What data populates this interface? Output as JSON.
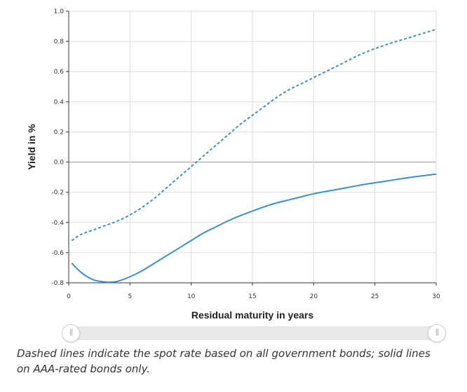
{
  "chart_data": {
    "type": "line",
    "xlabel": "Residual maturity in years",
    "ylabel": "Yield in %",
    "xlim": [
      0,
      30
    ],
    "ylim": [
      -0.8,
      1.0
    ],
    "x_ticks": [
      "0",
      "5",
      "10",
      "15",
      "20",
      "25",
      "30"
    ],
    "y_ticks": [
      "1.0",
      "0.8",
      "0.6",
      "0.4",
      "0.2",
      "0.0",
      "-0.2",
      "-0.4",
      "-0.6",
      "-0.8"
    ],
    "grid": true,
    "series": [
      {
        "style": "dashed",
        "color": "#3a8fd0",
        "x": [
          0.25,
          1,
          2,
          3,
          4,
          5,
          6,
          7,
          8,
          9,
          10,
          11,
          12,
          13,
          14,
          15,
          16,
          17,
          18,
          19,
          20,
          22,
          24,
          26,
          28,
          30
        ],
        "y": [
          -0.52,
          -0.48,
          -0.45,
          -0.42,
          -0.39,
          -0.35,
          -0.3,
          -0.24,
          -0.17,
          -0.1,
          -0.03,
          0.04,
          0.11,
          0.18,
          0.25,
          0.31,
          0.37,
          0.43,
          0.48,
          0.52,
          0.56,
          0.64,
          0.72,
          0.78,
          0.83,
          0.88
        ]
      },
      {
        "style": "solid",
        "color": "#3a8fd0",
        "x": [
          0.25,
          1,
          2,
          3,
          3.5,
          4,
          5,
          6,
          7,
          8,
          9,
          10,
          11,
          12,
          13,
          14,
          15,
          16,
          17,
          18,
          19,
          20,
          22,
          24,
          26,
          28,
          30
        ],
        "y": [
          -0.67,
          -0.73,
          -0.78,
          -0.795,
          -0.795,
          -0.79,
          -0.76,
          -0.72,
          -0.67,
          -0.62,
          -0.57,
          -0.52,
          -0.47,
          -0.43,
          -0.39,
          -0.355,
          -0.325,
          -0.295,
          -0.27,
          -0.25,
          -0.23,
          -0.21,
          -0.18,
          -0.15,
          -0.125,
          -0.1,
          -0.08
        ]
      }
    ]
  },
  "footnote": "Dashed lines indicate the spot rate based on all government bonds; solid lines on AAA-rated bonds only.",
  "slider": {
    "left_handle_glyph": "||",
    "right_handle_glyph": "||"
  }
}
